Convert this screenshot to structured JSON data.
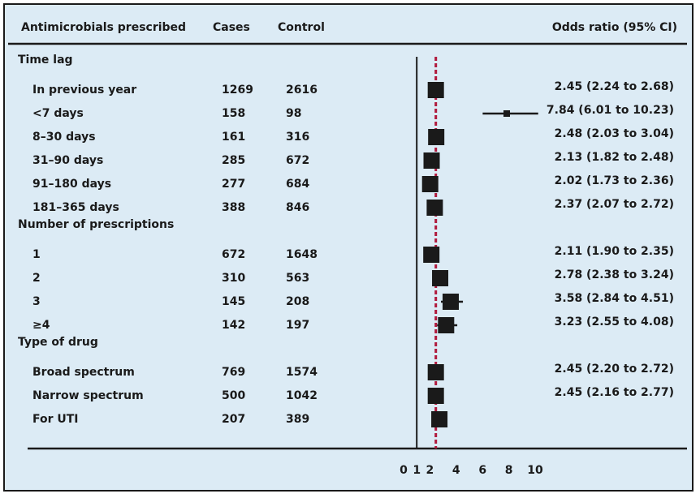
{
  "chart_data": {
    "type": "forest",
    "headers": {
      "label": "Antimicrobials prescribed",
      "cases": "Cases",
      "control": "Control",
      "or": "Odds ratio (95% CI)"
    },
    "rows": [
      {
        "label": "Time lag",
        "heading": true
      },
      {
        "label": "In previous year",
        "cases": "1269",
        "control": "2616",
        "or": 2.45,
        "lo": 2.24,
        "hi": 2.68,
        "ci_text": "2.45 (2.24 to 2.68)"
      },
      {
        "label": "<7 days",
        "cases": "158",
        "control": "98",
        "or": 7.84,
        "lo": 6.01,
        "hi": 10.23,
        "ci_text": "7.84 (6.01 to 10.23)"
      },
      {
        "label": "8–30 days",
        "cases": "161",
        "control": "316",
        "or": 2.48,
        "lo": 2.03,
        "hi": 3.04,
        "ci_text": "2.48 (2.03 to 3.04)"
      },
      {
        "label": "31–90 days",
        "cases": "285",
        "control": "672",
        "or": 2.13,
        "lo": 1.82,
        "hi": 2.48,
        "ci_text": "2.13 (1.82 to 2.48)"
      },
      {
        "label": "91–180 days",
        "cases": "277",
        "control": "684",
        "or": 2.02,
        "lo": 1.73,
        "hi": 2.36,
        "ci_text": "2.02 (1.73 to 2.36)"
      },
      {
        "label": "181–365 days",
        "cases": "388",
        "control": "846",
        "or": 2.37,
        "lo": 2.07,
        "hi": 2.72,
        "ci_text": "2.37 (2.07 to 2.72)"
      },
      {
        "label": "Number of prescriptions",
        "heading": true
      },
      {
        "label": "1",
        "cases": "672",
        "control": "1648",
        "or": 2.11,
        "lo": 1.9,
        "hi": 2.35,
        "ci_text": "2.11 (1.90 to 2.35)"
      },
      {
        "label": "2",
        "cases": "310",
        "control": "563",
        "or": 2.78,
        "lo": 2.38,
        "hi": 3.24,
        "ci_text": "2.78 (2.38 to 3.24)"
      },
      {
        "label": "3",
        "cases": "145",
        "control": "208",
        "or": 3.58,
        "lo": 2.84,
        "hi": 4.51,
        "ci_text": "3.58 (2.84 to 4.51)"
      },
      {
        "label": "≥4",
        "cases": "142",
        "control": "197",
        "or": 3.23,
        "lo": 2.55,
        "hi": 4.08,
        "ci_text": "3.23 (2.55 to 4.08)"
      },
      {
        "label": "Type of drug",
        "heading": true
      },
      {
        "label": "Broad spectrum",
        "cases": "769",
        "control": "1574",
        "or": 2.45,
        "lo": 2.2,
        "hi": 2.72,
        "ci_text": "2.45 (2.20 to 2.72)"
      },
      {
        "label": "Narrow spectrum",
        "cases": "500",
        "control": "1042",
        "or": 2.45,
        "lo": 2.16,
        "hi": 2.77,
        "ci_text": "2.45 (2.16 to 2.77)"
      },
      {
        "label": "For UTI",
        "cases": "207",
        "control": "389",
        "or": 2.72,
        "lo": 2.55,
        "hi": 2.9,
        "ci_text": ""
      }
    ],
    "x_ticks": [
      0,
      1,
      2,
      4,
      6,
      8,
      10
    ],
    "xlim": [
      0,
      10
    ],
    "reference_line": 1,
    "overall_line": 2.45,
    "colors": {
      "background": "#dcebf5",
      "ink": "#1a1a1a",
      "overall_line": "#b0183c"
    }
  }
}
